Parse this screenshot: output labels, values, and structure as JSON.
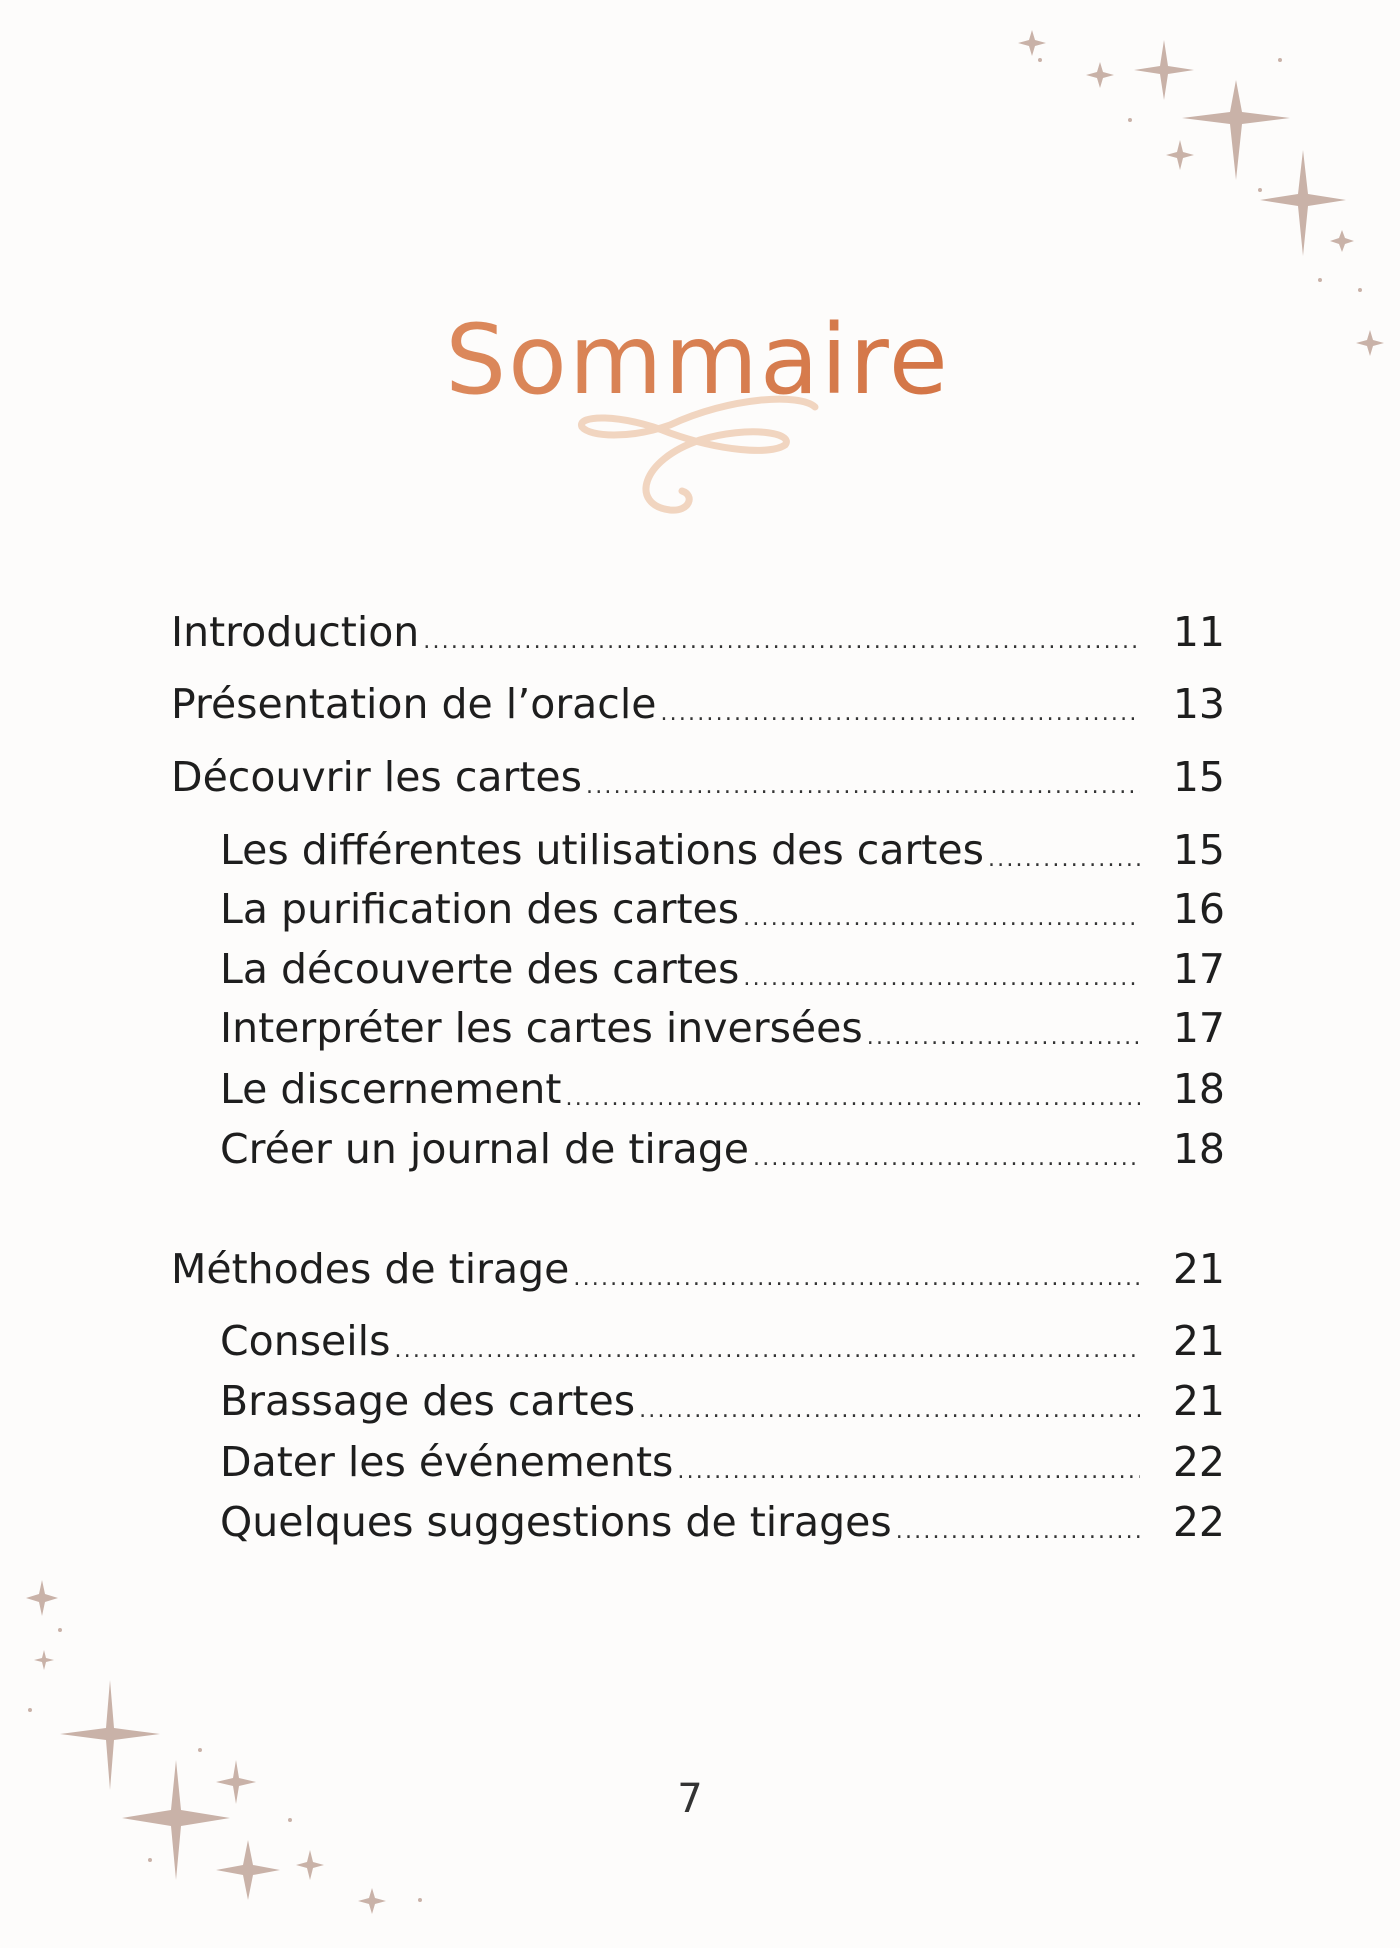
{
  "page": {
    "title": "Sommaire",
    "page_number": "7",
    "accent_color": "#d27a48",
    "ornament_color": "#f1d5c0",
    "star_color": "#c9b2a8"
  },
  "toc": [
    {
      "label": "Introduction",
      "page": "11",
      "level": 1
    },
    {
      "label": "Présentation de l’oracle",
      "page": "13",
      "level": 1
    },
    {
      "label": "Découvrir les cartes",
      "page": "15",
      "level": 1
    },
    {
      "label": "Les différentes utilisations des cartes",
      "page": "15",
      "level": 2
    },
    {
      "label": "La purification des cartes",
      "page": "16",
      "level": 2
    },
    {
      "label": "La découverte des cartes",
      "page": "17",
      "level": 2
    },
    {
      "label": "Interpréter les cartes inversées",
      "page": "17",
      "level": 2
    },
    {
      "label": "Le discernement",
      "page": "18",
      "level": 2
    },
    {
      "label": "Créer un journal de tirage",
      "page": "18",
      "level": 2
    },
    {
      "label": "Méthodes de tirage",
      "page": "21",
      "level": 1
    },
    {
      "label": "Conseils",
      "page": "21",
      "level": 2
    },
    {
      "label": "Brassage des cartes",
      "page": "21",
      "level": 2
    },
    {
      "label": "Dater les événements",
      "page": "22",
      "level": 2
    },
    {
      "label": "Quelques suggestions de tirages",
      "page": "22",
      "level": 2
    }
  ]
}
